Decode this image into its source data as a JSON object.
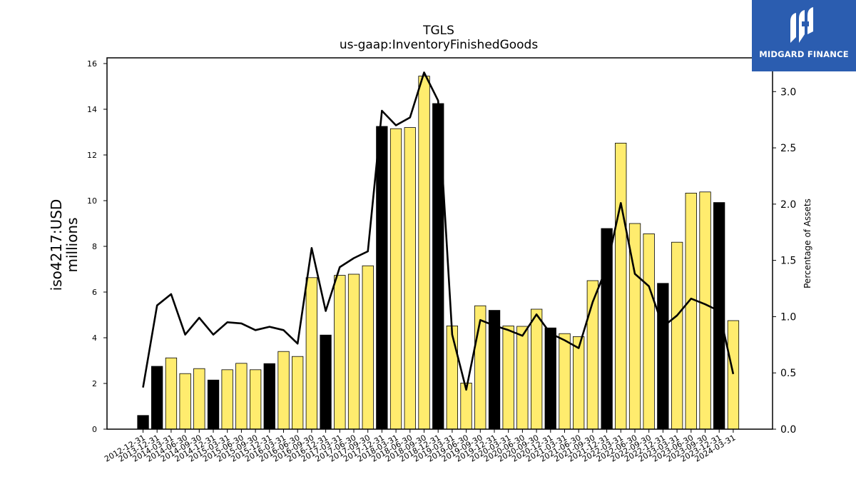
{
  "logo": {
    "text": "MIDGARD FINANCE",
    "icon": "midgard-logo-icon",
    "background": "#2b5db0"
  },
  "chart_data": {
    "type": "bar",
    "title": "TGLS",
    "subtitle": "us-gaap:InventoryFinishedGoods",
    "ylabel": "iso4217:USD",
    "ylabel_unit": "millions",
    "y2label": "Percentage of Assets",
    "ylim": [
      0,
      16.25
    ],
    "y2lim": [
      0,
      3.3
    ],
    "yticks": [
      0,
      2,
      4,
      6,
      8,
      10,
      12,
      14,
      16
    ],
    "y2ticks": [
      "0.0",
      "0.5",
      "1.0",
      "1.5",
      "2.0",
      "2.5",
      "3.0"
    ],
    "categories": [
      "2012-12-31",
      "2013-12-31",
      "2014-03-31",
      "2014-06-30",
      "2014-09-30",
      "2014-12-31",
      "2015-03-31",
      "2015-06-30",
      "2015-09-30",
      "2015-12-31",
      "2016-03-31",
      "2016-06-30",
      "2016-09-30",
      "2016-12-31",
      "2017-03-31",
      "2017-06-30",
      "2017-09-30",
      "2017-12-31",
      "2018-03-31",
      "2018-06-30",
      "2018-09-30",
      "2018-12-31",
      "2019-03-31",
      "2019-06-30",
      "2019-09-30",
      "2019-12-31",
      "2020-03-31",
      "2020-06-30",
      "2020-09-30",
      "2020-12-31",
      "2021-03-31",
      "2021-06-30",
      "2021-09-30",
      "2021-12-31",
      "2022-03-31",
      "2022-06-30",
      "2022-09-30",
      "2022-12-31",
      "2023-03-31",
      "2023-06-30",
      "2023-09-30",
      "2023-12-31",
      "2024-03-31"
    ],
    "series": [
      {
        "type": "bar",
        "values": [
          0.6,
          2.75,
          3.12,
          2.43,
          2.65,
          2.15,
          2.6,
          2.88,
          2.6,
          2.87,
          3.4,
          3.18,
          6.63,
          4.12,
          6.73,
          6.78,
          7.15,
          13.25,
          13.15,
          13.2,
          15.45,
          14.25,
          4.52,
          2.02,
          5.4,
          5.2,
          4.52,
          4.5,
          5.25,
          4.43,
          4.18,
          4.05,
          6.5,
          8.78,
          12.52,
          9.0,
          8.55,
          6.38,
          8.18,
          10.33,
          10.38,
          9.92,
          4.75
        ]
      },
      {
        "type": "line",
        "axis": "right",
        "values": [
          0.37,
          1.1,
          1.2,
          0.84,
          0.99,
          0.84,
          0.95,
          0.94,
          0.88,
          0.91,
          0.88,
          0.76,
          1.61,
          1.05,
          1.44,
          1.52,
          1.58,
          2.83,
          2.7,
          2.77,
          3.17,
          2.92,
          0.84,
          0.35,
          0.97,
          0.92,
          0.88,
          0.83,
          1.02,
          0.85,
          0.79,
          0.72,
          1.13,
          1.44,
          2.01,
          1.38,
          1.27,
          0.91,
          1.01,
          1.16,
          1.11,
          1.05,
          0.49
        ]
      }
    ],
    "bar_colors": {
      "december": "#000000",
      "other": "#ffec6e"
    },
    "line_color": "#000000",
    "grid": false,
    "legend": "none"
  }
}
